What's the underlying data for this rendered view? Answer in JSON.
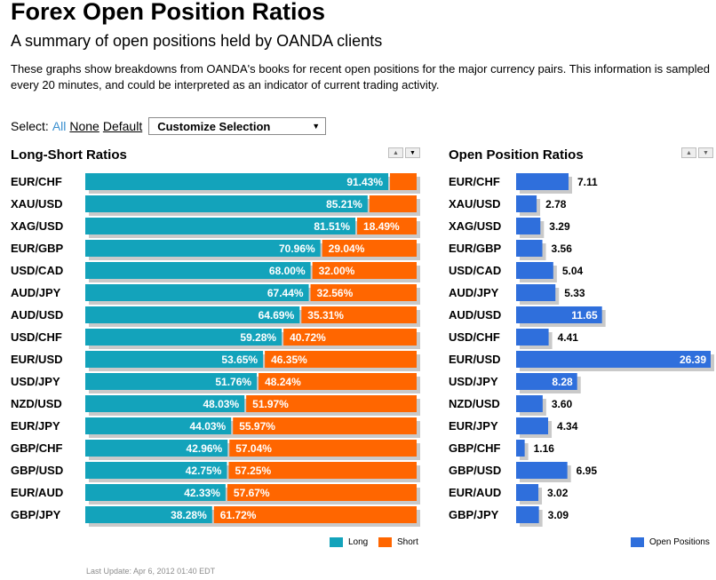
{
  "page": {
    "title": "Forex Open Position Ratios",
    "subtitle": "A summary of open positions held by OANDA clients",
    "description": "These graphs show breakdowns from OANDA's books for recent open positions for the major currency pairs. This information is sampled every 20 minutes, and could be interpreted as an indicator of current trading activity.",
    "last_update": "Last Update: Apr 6, 2012 01:40 EDT"
  },
  "select": {
    "label": "Select:",
    "all": "All",
    "none": "None",
    "default": "Default",
    "dropdown": "Customize Selection"
  },
  "sort_icons": [
    "sort-up-icon",
    "sort-down-icon"
  ],
  "colors": {
    "long": "#13a3bb",
    "short": "#ff6600",
    "open": "#2f6fdc",
    "shadow": "#c9c9c9",
    "active_link": "#3a8fcf"
  },
  "chart_data": [
    {
      "type": "bar",
      "stacked": true,
      "orientation": "horizontal",
      "title": "Long-Short Ratios",
      "categories": [
        "EUR/CHF",
        "XAU/USD",
        "XAG/USD",
        "EUR/GBP",
        "USD/CAD",
        "AUD/JPY",
        "AUD/USD",
        "USD/CHF",
        "EUR/USD",
        "USD/JPY",
        "NZD/USD",
        "EUR/JPY",
        "GBP/CHF",
        "GBP/USD",
        "EUR/AUD",
        "GBP/JPY"
      ],
      "series": [
        {
          "name": "Long",
          "values": [
            91.43,
            85.21,
            81.51,
            70.96,
            68.0,
            67.44,
            64.69,
            59.28,
            53.65,
            51.76,
            48.03,
            44.03,
            42.96,
            42.75,
            42.33,
            38.28
          ]
        },
        {
          "name": "Short",
          "values": [
            8.57,
            14.79,
            18.49,
            29.04,
            32.0,
            32.56,
            35.31,
            40.72,
            46.35,
            48.24,
            51.97,
            55.97,
            57.04,
            57.25,
            57.67,
            61.72
          ]
        }
      ],
      "short_label_shown": [
        false,
        false,
        true,
        true,
        true,
        true,
        true,
        true,
        true,
        true,
        true,
        true,
        true,
        true,
        true,
        true
      ],
      "xlim": [
        0,
        100
      ],
      "legend": "bottom-right"
    },
    {
      "type": "bar",
      "orientation": "horizontal",
      "title": "Open Position Ratios",
      "categories": [
        "EUR/CHF",
        "XAU/USD",
        "XAG/USD",
        "EUR/GBP",
        "USD/CAD",
        "AUD/JPY",
        "AUD/USD",
        "USD/CHF",
        "EUR/USD",
        "USD/JPY",
        "NZD/USD",
        "EUR/JPY",
        "GBP/CHF",
        "GBP/USD",
        "EUR/AUD",
        "GBP/JPY"
      ],
      "series": [
        {
          "name": "Open Positions",
          "values": [
            7.11,
            2.78,
            3.29,
            3.56,
            5.04,
            5.33,
            11.65,
            4.41,
            26.39,
            8.28,
            3.6,
            4.34,
            1.16,
            6.95,
            3.02,
            3.09
          ]
        }
      ],
      "xlim": [
        0,
        26.39
      ],
      "legend": "bottom-right"
    }
  ]
}
